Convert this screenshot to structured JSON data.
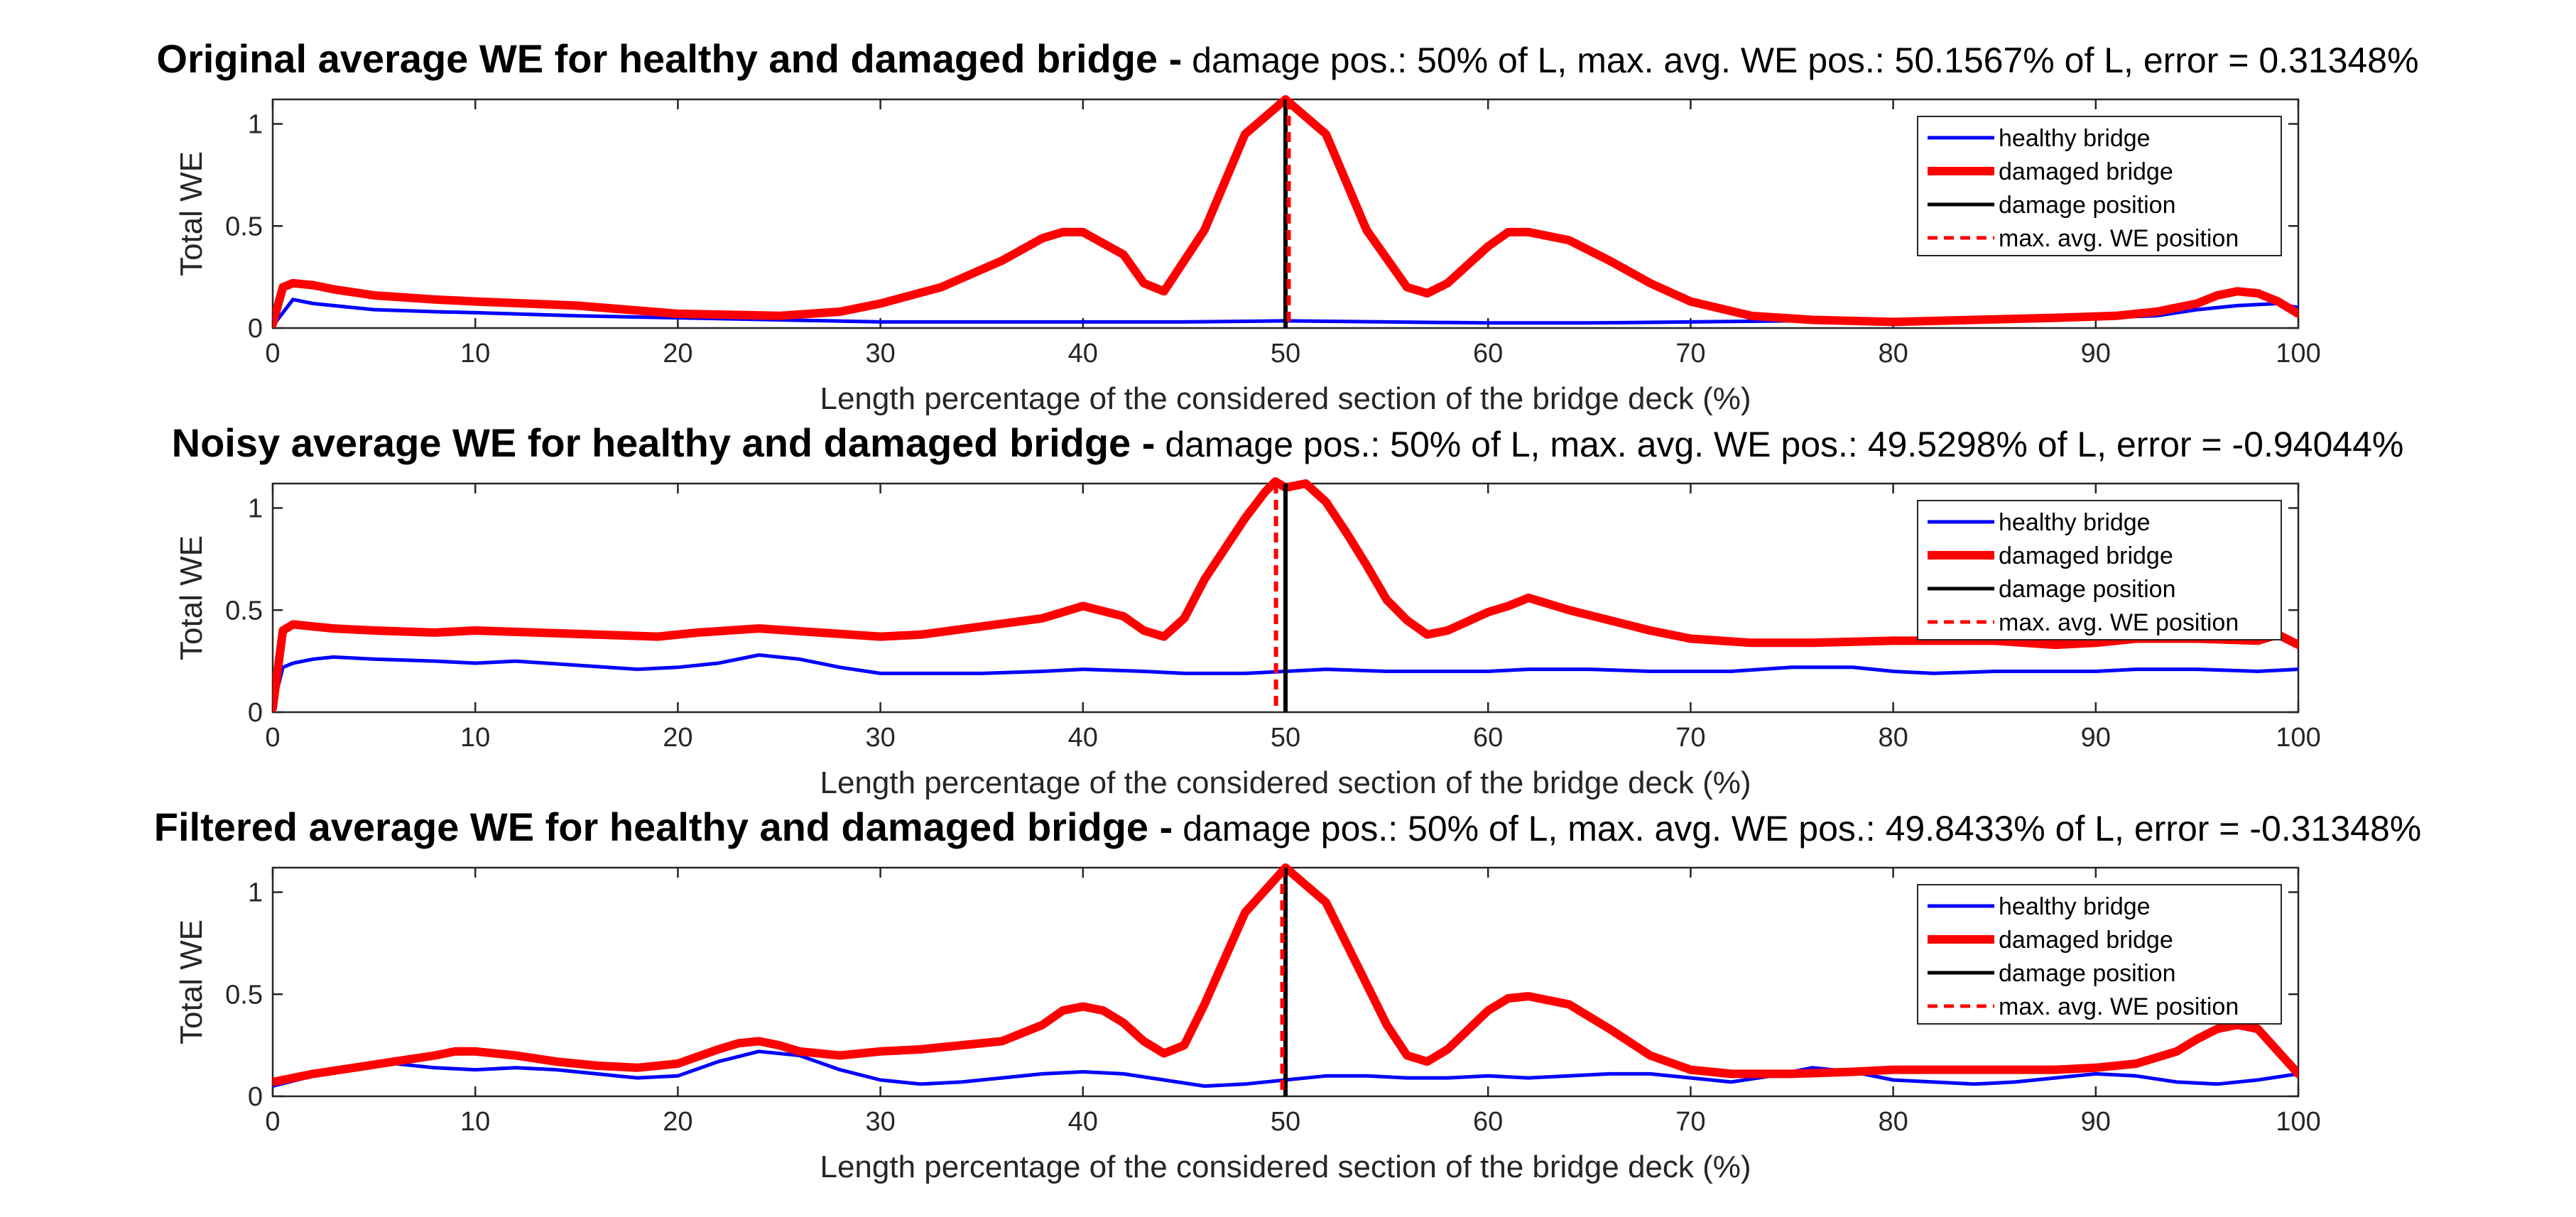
{
  "colors": {
    "healthy": "#0000ff",
    "damaged": "#ff0000",
    "damage_position": "#000000",
    "max_position": "#ff0000",
    "axis": "#262626"
  },
  "chart_data": [
    {
      "type": "line",
      "title_bold": "Original average WE for healthy and damaged bridge -",
      "title_rest": " damage pos.: 50% of L, max. avg. WE pos.: 50.1567% of L, error = 0.31348%",
      "xlabel": "Length percentage of the considered section of the bridge deck (%)",
      "ylabel": "Total WE",
      "xlim": [
        0,
        100
      ],
      "ylim": [
        0,
        1.12
      ],
      "xticks": [
        "0",
        "10",
        "20",
        "30",
        "40",
        "50",
        "60",
        "70",
        "80",
        "90",
        "100"
      ],
      "yticks": [
        "0",
        "0.5",
        "1"
      ],
      "legend": [
        "healthy bridge",
        "damaged bridge",
        "damage position",
        "max. avg. WE position"
      ],
      "legend_location": "top-right",
      "damage_position": 50,
      "max_avg_we_position": 50.1567,
      "series": [
        {
          "name": "healthy bridge",
          "x": [
            0,
            1,
            2,
            3,
            5,
            8,
            10,
            15,
            20,
            25,
            30,
            35,
            40,
            45,
            50,
            55,
            60,
            65,
            70,
            75,
            80,
            85,
            90,
            93,
            95,
            97,
            99,
            100
          ],
          "y": [
            0.01,
            0.14,
            0.12,
            0.11,
            0.09,
            0.08,
            0.075,
            0.06,
            0.05,
            0.04,
            0.03,
            0.03,
            0.03,
            0.03,
            0.035,
            0.03,
            0.025,
            0.025,
            0.03,
            0.035,
            0.04,
            0.045,
            0.05,
            0.06,
            0.09,
            0.11,
            0.12,
            0.1
          ]
        },
        {
          "name": "damaged bridge",
          "x": [
            0,
            0.5,
            1,
            2,
            3,
            5,
            8,
            10,
            15,
            20,
            25,
            28,
            30,
            33,
            36,
            38,
            39,
            40,
            42,
            43,
            44,
            46,
            48,
            50,
            52,
            54,
            56,
            57,
            58,
            60,
            61,
            62,
            64,
            66,
            68,
            70,
            73,
            76,
            80,
            84,
            88,
            91,
            93,
            95,
            96,
            97,
            98,
            99,
            100
          ],
          "y": [
            0.02,
            0.2,
            0.22,
            0.21,
            0.19,
            0.16,
            0.14,
            0.13,
            0.11,
            0.07,
            0.06,
            0.08,
            0.12,
            0.2,
            0.33,
            0.44,
            0.47,
            0.47,
            0.36,
            0.22,
            0.18,
            0.48,
            0.95,
            1.12,
            0.95,
            0.48,
            0.2,
            0.17,
            0.22,
            0.4,
            0.47,
            0.47,
            0.43,
            0.33,
            0.22,
            0.13,
            0.06,
            0.04,
            0.03,
            0.04,
            0.05,
            0.06,
            0.08,
            0.12,
            0.16,
            0.18,
            0.17,
            0.13,
            0.07
          ]
        }
      ]
    },
    {
      "type": "line",
      "title_bold": "Noisy average WE for healthy and damaged bridge -",
      "title_rest": " damage pos.: 50% of L, max. avg. WE pos.: 49.5298% of L, error = -0.94044%",
      "xlabel": "Length percentage of the considered section of the bridge deck (%)",
      "ylabel": "Total WE",
      "xlim": [
        0,
        100
      ],
      "ylim": [
        0,
        1.12
      ],
      "xticks": [
        "0",
        "10",
        "20",
        "30",
        "40",
        "50",
        "60",
        "70",
        "80",
        "90",
        "100"
      ],
      "yticks": [
        "0",
        "0.5",
        "1"
      ],
      "legend": [
        "healthy bridge",
        "damaged bridge",
        "damage position",
        "max. avg. WE position"
      ],
      "legend_location": "top-right",
      "damage_position": 50,
      "max_avg_we_position": 49.5298,
      "series": [
        {
          "name": "healthy bridge",
          "x": [
            0,
            0.5,
            1,
            2,
            3,
            5,
            8,
            10,
            12,
            15,
            18,
            20,
            22,
            24,
            26,
            28,
            30,
            32,
            35,
            38,
            40,
            43,
            45,
            48,
            50,
            52,
            55,
            58,
            60,
            62,
            65,
            68,
            70,
            72,
            75,
            78,
            80,
            82,
            85,
            88,
            90,
            92,
            95,
            98,
            100
          ],
          "y": [
            0.02,
            0.22,
            0.24,
            0.26,
            0.27,
            0.26,
            0.25,
            0.24,
            0.25,
            0.23,
            0.21,
            0.22,
            0.24,
            0.28,
            0.26,
            0.22,
            0.19,
            0.19,
            0.19,
            0.2,
            0.21,
            0.2,
            0.19,
            0.19,
            0.2,
            0.21,
            0.2,
            0.2,
            0.2,
            0.21,
            0.21,
            0.2,
            0.2,
            0.2,
            0.22,
            0.22,
            0.2,
            0.19,
            0.2,
            0.2,
            0.2,
            0.21,
            0.21,
            0.2,
            0.21
          ]
        },
        {
          "name": "damaged bridge",
          "x": [
            0,
            0.5,
            1,
            2,
            3,
            5,
            8,
            10,
            13,
            16,
            19,
            21,
            24,
            27,
            30,
            32,
            35,
            38,
            40,
            42,
            43,
            44,
            45,
            46,
            47,
            48,
            49,
            49.5,
            50,
            51,
            52,
            53,
            54,
            55,
            56,
            57,
            58,
            60,
            61,
            62,
            64,
            66,
            68,
            70,
            73,
            76,
            80,
            85,
            88,
            90,
            92,
            95,
            98,
            99,
            100
          ],
          "y": [
            0.02,
            0.4,
            0.43,
            0.42,
            0.41,
            0.4,
            0.39,
            0.4,
            0.39,
            0.38,
            0.37,
            0.39,
            0.41,
            0.39,
            0.37,
            0.38,
            0.42,
            0.46,
            0.52,
            0.47,
            0.4,
            0.37,
            0.46,
            0.65,
            0.8,
            0.95,
            1.08,
            1.13,
            1.1,
            1.12,
            1.03,
            0.88,
            0.72,
            0.55,
            0.45,
            0.38,
            0.4,
            0.49,
            0.52,
            0.56,
            0.5,
            0.45,
            0.4,
            0.36,
            0.34,
            0.34,
            0.35,
            0.35,
            0.33,
            0.34,
            0.36,
            0.36,
            0.35,
            0.38,
            0.33
          ]
        }
      ]
    },
    {
      "type": "line",
      "title_bold": "Filtered average WE for healthy and damaged bridge -",
      "title_rest": " damage pos.: 50% of L, max. avg. WE pos.: 49.8433% of L, error = -0.31348%",
      "xlabel": "Length percentage of the considered section of the bridge deck (%)",
      "ylabel": "Total WE",
      "xlim": [
        0,
        100
      ],
      "ylim": [
        0,
        1.12
      ],
      "xticks": [
        "0",
        "10",
        "20",
        "30",
        "40",
        "50",
        "60",
        "70",
        "80",
        "90",
        "100"
      ],
      "yticks": [
        "0",
        "0.5",
        "1"
      ],
      "legend": [
        "healthy bridge",
        "damaged bridge",
        "damage position",
        "max. avg. WE position"
      ],
      "legend_location": "top-right",
      "damage_position": 50,
      "max_avg_we_position": 49.8433,
      "series": [
        {
          "name": "healthy bridge",
          "x": [
            0,
            2,
            4,
            6,
            8,
            10,
            12,
            14,
            16,
            18,
            20,
            22,
            24,
            26,
            28,
            30,
            32,
            34,
            36,
            38,
            40,
            42,
            44,
            46,
            48,
            50,
            52,
            54,
            56,
            58,
            60,
            62,
            64,
            66,
            68,
            70,
            72,
            74,
            76,
            78,
            80,
            82,
            84,
            86,
            88,
            90,
            92,
            94,
            96,
            98,
            100
          ],
          "y": [
            0.05,
            0.1,
            0.15,
            0.16,
            0.14,
            0.13,
            0.14,
            0.13,
            0.11,
            0.09,
            0.1,
            0.17,
            0.22,
            0.2,
            0.13,
            0.08,
            0.06,
            0.07,
            0.09,
            0.11,
            0.12,
            0.11,
            0.08,
            0.05,
            0.06,
            0.08,
            0.1,
            0.1,
            0.09,
            0.09,
            0.1,
            0.09,
            0.1,
            0.11,
            0.11,
            0.09,
            0.07,
            0.1,
            0.14,
            0.12,
            0.08,
            0.07,
            0.06,
            0.07,
            0.09,
            0.11,
            0.1,
            0.07,
            0.06,
            0.08,
            0.11
          ]
        },
        {
          "name": "damaged bridge",
          "x": [
            0,
            2,
            4,
            6,
            8,
            9,
            10,
            12,
            14,
            16,
            18,
            20,
            22,
            23,
            24,
            25,
            26,
            28,
            30,
            32,
            34,
            36,
            38,
            39,
            40,
            41,
            42,
            43,
            44,
            45,
            46,
            48,
            50,
            52,
            54,
            55,
            56,
            57,
            58,
            60,
            61,
            62,
            64,
            66,
            68,
            70,
            72,
            75,
            78,
            80,
            84,
            88,
            90,
            92,
            94,
            95,
            96,
            97,
            98,
            100
          ],
          "y": [
            0.07,
            0.11,
            0.14,
            0.17,
            0.2,
            0.22,
            0.22,
            0.2,
            0.17,
            0.15,
            0.14,
            0.16,
            0.23,
            0.26,
            0.27,
            0.25,
            0.22,
            0.2,
            0.22,
            0.23,
            0.25,
            0.27,
            0.35,
            0.42,
            0.44,
            0.42,
            0.36,
            0.27,
            0.21,
            0.25,
            0.45,
            0.9,
            1.12,
            0.95,
            0.55,
            0.35,
            0.2,
            0.17,
            0.23,
            0.42,
            0.48,
            0.49,
            0.45,
            0.33,
            0.2,
            0.13,
            0.11,
            0.11,
            0.12,
            0.13,
            0.13,
            0.13,
            0.14,
            0.16,
            0.22,
            0.28,
            0.33,
            0.35,
            0.33,
            0.11
          ]
        }
      ]
    }
  ]
}
